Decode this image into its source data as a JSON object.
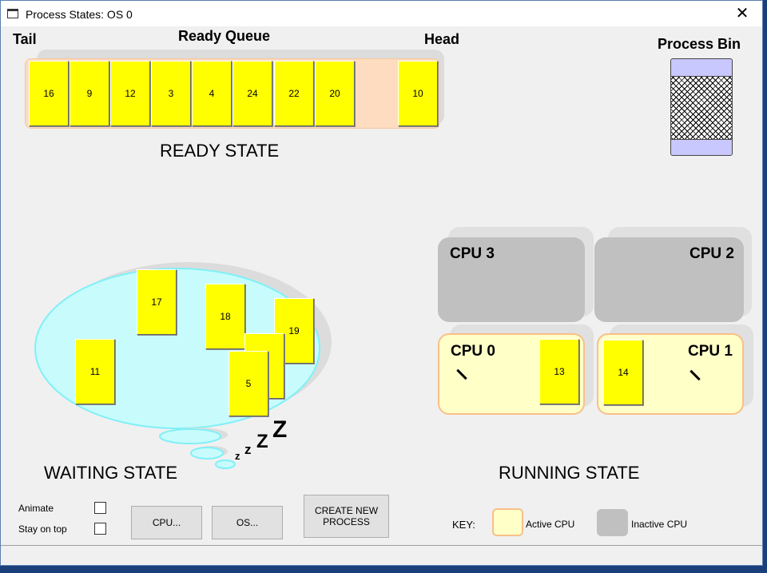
{
  "window": {
    "title": "Process States: OS 0",
    "close_icon": "close-icon"
  },
  "ready": {
    "tail_label": "Tail",
    "queue_label": "Ready Queue",
    "head_label": "Head",
    "state_label": "READY STATE",
    "queue": [
      "16",
      "9",
      "12",
      "3",
      "4",
      "24",
      "22",
      "20"
    ],
    "head": "10"
  },
  "bin": {
    "label": "Process Bin"
  },
  "waiting": {
    "state_label": "WAITING STATE",
    "processes": [
      "17",
      "18",
      "19",
      "",
      "5",
      "11"
    ],
    "sleep_text": [
      "z",
      "z",
      "Z",
      "Z"
    ]
  },
  "running": {
    "state_label": "RUNNING STATE",
    "cpus": [
      {
        "label": "CPU 3",
        "active": false
      },
      {
        "label": "CPU 2",
        "active": false
      },
      {
        "label": "CPU 0",
        "active": true,
        "process": "13"
      },
      {
        "label": "CPU 1",
        "active": true,
        "process": "14"
      }
    ]
  },
  "controls": {
    "animate": "Animate",
    "stay_on_top": "Stay on top",
    "animate_checked": false,
    "stay_on_top_checked": false,
    "cpu_button": "CPU...",
    "os_button": "OS...",
    "create_button": "CREATE NEW PROCESS"
  },
  "key": {
    "label": "KEY:",
    "active": "Active CPU",
    "inactive": "Inactive CPU"
  },
  "colors": {
    "process": "#ffff00",
    "active_cpu": "#ffffc8",
    "inactive_cpu": "#c0c0c0",
    "queue": "#fddcbf",
    "waiting": "#c8fcfc",
    "bin": "#c8c8ff"
  }
}
